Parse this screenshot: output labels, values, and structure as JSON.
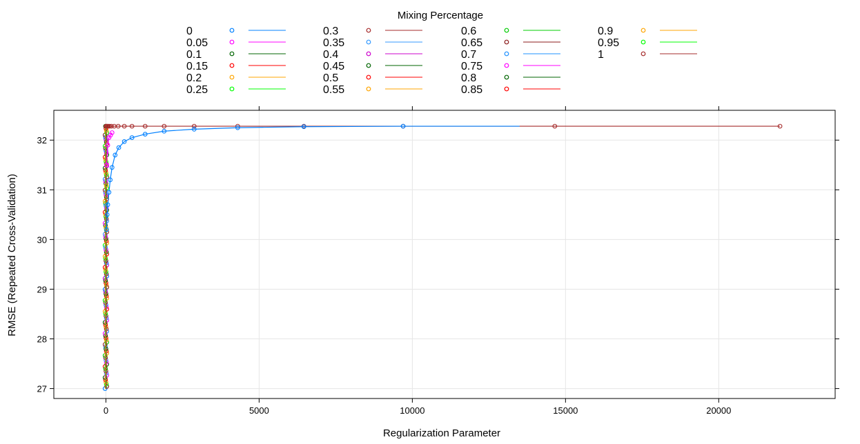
{
  "chart_data": {
    "type": "line",
    "legend_title": "Mixing Percentage",
    "legend_placement": "top",
    "xlabel": "Regularization Parameter",
    "ylabel": "RMSE (Repeated Cross-Validation)",
    "xlim": [
      -1700,
      23800
    ],
    "ylim": [
      26.8,
      32.6
    ],
    "xticks": [
      0,
      5000,
      10000,
      15000,
      20000
    ],
    "yticks": [
      27,
      28,
      29,
      30,
      31,
      32
    ],
    "grid": true,
    "series": [
      {
        "name": "0",
        "color": "#0080ff"
      },
      {
        "name": "0.05",
        "color": "#ff00ff"
      },
      {
        "name": "0.1",
        "color": "#006400"
      },
      {
        "name": "0.15",
        "color": "#ff0000"
      },
      {
        "name": "0.2",
        "color": "#ffa500"
      },
      {
        "name": "0.25",
        "color": "#00ff00"
      },
      {
        "name": "0.3",
        "color": "#a52a2a"
      },
      {
        "name": "0.35",
        "color": "#3399ff"
      },
      {
        "name": "0.4",
        "color": "#cc00cc"
      },
      {
        "name": "0.45",
        "color": "#006400"
      },
      {
        "name": "0.5",
        "color": "#ff0000"
      },
      {
        "name": "0.55",
        "color": "#ffa500"
      },
      {
        "name": "0.6",
        "color": "#00cc00"
      },
      {
        "name": "0.65",
        "color": "#8b1a1a"
      },
      {
        "name": "0.7",
        "color": "#1e90ff"
      },
      {
        "name": "0.75",
        "color": "#ff00ff"
      },
      {
        "name": "0.8",
        "color": "#006400"
      },
      {
        "name": "0.85",
        "color": "#ff0000"
      },
      {
        "name": "0.9",
        "color": "#ffa500"
      },
      {
        "name": "0.95",
        "color": "#00ff00"
      },
      {
        "name": "1",
        "color": "#a52a2a"
      }
    ],
    "curve_ridge": {
      "series": "0",
      "x": [
        20,
        40,
        60,
        100,
        140,
        200,
        300,
        420,
        600,
        850,
        1280,
        1900,
        2880,
        4300,
        6460,
        9700
      ],
      "y": [
        30.2,
        30.5,
        30.7,
        30.95,
        31.2,
        31.45,
        31.7,
        31.85,
        31.97,
        32.05,
        32.12,
        32.18,
        32.22,
        32.25,
        32.27,
        32.28
      ]
    },
    "curve_ridge_line_end": {
      "x": 13500,
      "y": 32.28
    },
    "curve_top": {
      "series": "1",
      "x": [
        0,
        25,
        50,
        80,
        120,
        180,
        270,
        400,
        600,
        850,
        1280,
        1900,
        2880,
        4300,
        6460,
        9700,
        14650,
        22000
      ],
      "y": [
        32.28,
        32.28,
        32.28,
        32.28,
        32.28,
        32.28,
        32.28,
        32.28,
        32.28,
        32.28,
        32.28,
        32.28,
        32.28,
        32.28,
        32.28,
        32.28,
        32.28,
        32.28
      ]
    },
    "curve_magenta": {
      "series": "0.05",
      "x": [
        20,
        60,
        100,
        150,
        200
      ],
      "y": [
        31.5,
        31.9,
        32.05,
        32.1,
        32.15
      ]
    },
    "near_zero_points": {
      "x": 0,
      "y_range": [
        27.0,
        32.28
      ],
      "note_count": 120
    }
  }
}
